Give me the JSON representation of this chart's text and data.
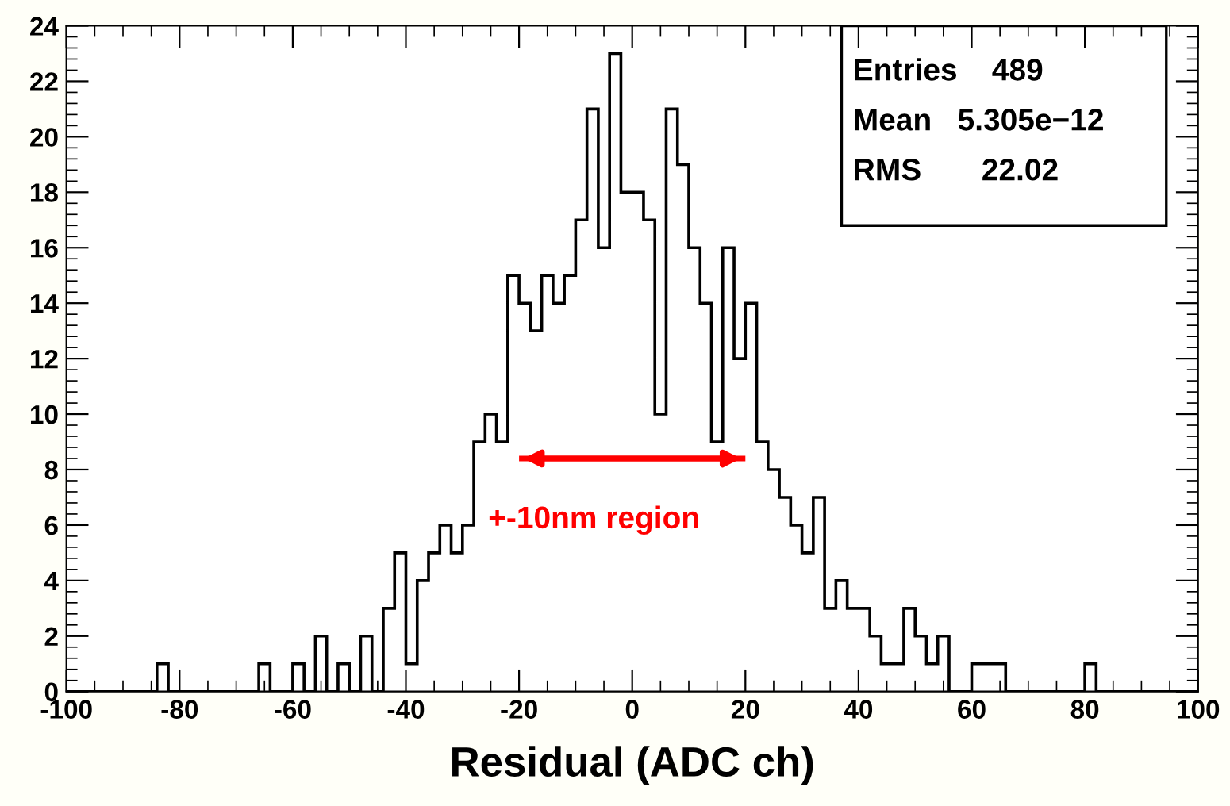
{
  "chart_data": {
    "type": "histogram",
    "xlabel": "Residual (ADC ch)",
    "bins": [
      -100,
      -98,
      -96,
      -94,
      -92,
      -90,
      -88,
      -86,
      -84,
      -82,
      -80,
      -78,
      -76,
      -74,
      -72,
      -70,
      -68,
      -66,
      -64,
      -62,
      -60,
      -58,
      -56,
      -54,
      -52,
      -50,
      -48,
      -46,
      -44,
      -42,
      -40,
      -38,
      -36,
      -34,
      -32,
      -30,
      -28,
      -26,
      -24,
      -22,
      -20,
      -18,
      -16,
      -14,
      -12,
      -10,
      -8,
      -6,
      -4,
      -2,
      0,
      2,
      4,
      6,
      8,
      10,
      12,
      14,
      16,
      18,
      20,
      22,
      24,
      26,
      28,
      30,
      32,
      34,
      36,
      38,
      40,
      42,
      44,
      46,
      48,
      50,
      52,
      54,
      56,
      58,
      60,
      62,
      64,
      66,
      68,
      70,
      72,
      74,
      76,
      78,
      80,
      82,
      84,
      86,
      88,
      90,
      92,
      94,
      96,
      98,
      100
    ],
    "values": [
      0,
      0,
      0,
      0,
      0,
      0,
      0,
      0,
      1,
      0,
      0,
      0,
      0,
      0,
      0,
      0,
      0,
      1,
      0,
      0,
      1,
      0,
      2,
      0,
      1,
      0,
      2,
      0,
      3,
      5,
      1,
      4,
      5,
      6,
      5,
      6,
      9,
      10,
      9,
      15,
      14,
      13,
      15,
      14,
      15,
      17,
      21,
      16,
      23,
      18,
      18,
      17,
      10,
      21,
      19,
      16,
      14,
      9,
      16,
      12,
      14,
      9,
      8,
      7,
      6,
      5,
      7,
      3,
      4,
      3,
      3,
      2,
      1,
      1,
      3,
      2,
      1,
      2,
      0,
      0,
      1,
      1,
      1,
      0,
      0,
      0,
      0,
      0,
      0,
      0,
      1,
      0,
      0,
      0,
      0,
      0,
      0,
      0,
      0,
      0
    ],
    "color": "#000000",
    "xlim": [
      -100,
      100
    ],
    "xticks": [
      -100,
      -80,
      -60,
      -40,
      -20,
      0,
      20,
      40,
      60,
      80,
      100
    ],
    "ylim": [
      0,
      24
    ],
    "yticks": [
      0,
      2,
      4,
      6,
      8,
      10,
      12,
      14,
      16,
      18,
      20,
      22,
      24
    ],
    "grid": false,
    "legend": false,
    "series": [
      {
        "type": "line",
        "name": "+-10nm region",
        "color": "#ff0000",
        "x": [
          -20,
          20
        ],
        "values": [
          8.4,
          8.4
        ]
      }
    ],
    "annotations": [
      "Entries    489",
      "Mean   5.305e−12",
      "RMS       22.02"
    ]
  }
}
